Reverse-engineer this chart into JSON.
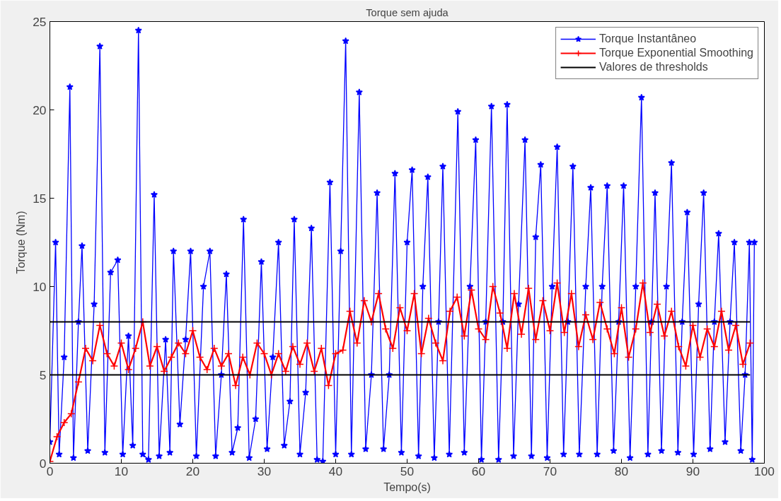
{
  "chart_data": {
    "type": "line",
    "title": "Torque sem ajuda",
    "xlabel": "Tempo(s)",
    "ylabel": "Torque (Nm)",
    "xlim": [
      0,
      100
    ],
    "ylim": [
      0,
      25
    ],
    "xticks": [
      0,
      10,
      20,
      30,
      40,
      50,
      60,
      70,
      80,
      90,
      100
    ],
    "yticks": [
      0,
      5,
      10,
      15,
      20,
      25
    ],
    "grid": false,
    "legend": "top right",
    "series": [
      {
        "name": "Torque Instantâneo",
        "color": "#0000ff",
        "marker": "star",
        "x": [
          0,
          0.8,
          1.3,
          2.0,
          2.8,
          3.3,
          4.0,
          4.5,
          5.3,
          6.2,
          7.0,
          7.7,
          8.5,
          9.5,
          10.2,
          11.0,
          11.6,
          12.4,
          13.0,
          13.8,
          14.6,
          15.3,
          16.2,
          16.8,
          17.3,
          18.2,
          19.0,
          19.7,
          20.5,
          21.5,
          22.4,
          23.2,
          24.0,
          24.7,
          25.5,
          26.3,
          27.1,
          27.9,
          28.8,
          29.6,
          30.4,
          31.2,
          32.0,
          32.8,
          33.6,
          34.2,
          35.0,
          35.8,
          36.6,
          37.4,
          38.2,
          39.2,
          40.0,
          40.7,
          41.4,
          42.2,
          43.3,
          44.2,
          45.0,
          45.8,
          46.7,
          47.5,
          48.3,
          49.2,
          50.0,
          50.7,
          51.6,
          52.2,
          52.9,
          53.8,
          54.4,
          55.0,
          55.9,
          57.1,
          58.0,
          58.8,
          59.6,
          60.4,
          61.0,
          61.8,
          62.8,
          63.4,
          64.0,
          64.9,
          65.6,
          66.5,
          67.4,
          68.0,
          68.7,
          69.6,
          70.3,
          71.0,
          71.9,
          72.5,
          73.2,
          74.1,
          75.0,
          75.7,
          76.6,
          77.3,
          78.0,
          78.9,
          79.6,
          80.3,
          81.2,
          82.0,
          82.8,
          83.7,
          84.2,
          84.7,
          85.6,
          86.3,
          87.0,
          87.9,
          88.5,
          89.2,
          90.1,
          90.8,
          91.5,
          92.4,
          93.0,
          93.6,
          94.5,
          95.2,
          95.8,
          96.7,
          97.3,
          97.9,
          98.3,
          98.6
        ],
        "values": [
          1.2,
          12.5,
          0.5,
          6,
          21.3,
          0.3,
          8,
          12.3,
          0.7,
          9,
          23.6,
          0.6,
          10.8,
          11.5,
          0.5,
          7.2,
          1.0,
          24.5,
          0.5,
          0.2,
          15.2,
          0.4,
          7,
          0.6,
          12,
          2.2,
          7,
          12,
          0.4,
          10,
          12,
          0.4,
          5,
          10.7,
          0.6,
          2,
          13.8,
          0.3,
          2.5,
          11.4,
          0.8,
          6,
          12.5,
          1.0,
          3.5,
          13.8,
          0.5,
          4,
          13.3,
          0.2,
          0.1,
          15.9,
          0.5,
          12,
          23.9,
          0.5,
          21,
          0.8,
          5,
          15.3,
          0.8,
          5,
          16.4,
          0.6,
          12.5,
          16.6,
          0.4,
          10,
          16.2,
          0.3,
          8,
          16.8,
          0.5,
          19.9,
          0.6,
          10,
          18.3,
          0.2,
          8,
          20.2,
          0.2,
          8,
          20.3,
          0.4,
          9,
          18.3,
          0.4,
          12.8,
          16.9,
          0.3,
          10,
          17.9,
          0.5,
          8,
          16.8,
          0.5,
          10,
          15.6,
          0.5,
          10,
          15.7,
          0.7,
          8,
          15.7,
          0.3,
          10,
          20.7,
          0.5,
          8,
          15.3,
          0.7,
          10,
          17,
          0.6,
          8,
          14.2,
          0.5,
          9,
          15.3,
          0.8,
          8,
          13,
          1.2,
          8,
          12.5,
          0.7,
          5,
          12.5,
          0.2,
          12.5
        ]
      },
      {
        "name": "Torque Exponential Smoothing",
        "color": "#ff0000",
        "marker": "cross",
        "x": [
          0,
          1,
          2,
          3,
          4,
          5,
          6,
          7,
          8,
          9,
          10,
          11,
          12,
          13,
          14,
          15,
          16,
          17,
          18,
          19,
          20,
          21,
          22,
          23,
          24,
          25,
          26,
          27,
          28,
          29,
          30,
          31,
          32,
          33,
          34,
          35,
          36,
          37,
          38,
          39,
          40,
          41,
          42,
          43,
          44,
          45,
          46,
          47,
          48,
          49,
          50,
          51,
          52,
          53,
          54,
          55,
          56,
          57,
          58,
          59,
          60,
          61,
          62,
          63,
          64,
          65,
          66,
          67,
          68,
          69,
          70,
          71,
          72,
          73,
          74,
          75,
          76,
          77,
          78,
          79,
          80,
          81,
          82,
          83,
          84,
          85,
          86,
          87,
          88,
          89,
          90,
          91,
          92,
          93,
          94,
          95,
          96,
          97,
          98
        ],
        "values": [
          0.1,
          1.5,
          2.3,
          2.8,
          4.6,
          6.5,
          5.8,
          7.8,
          6.2,
          5.5,
          6.8,
          5.3,
          6.5,
          8.0,
          5.5,
          6.6,
          5.2,
          6.0,
          6.8,
          6.2,
          7.5,
          6.0,
          5.3,
          6.5,
          5.5,
          6.2,
          4.4,
          6.0,
          5.0,
          6.8,
          6.2,
          5.0,
          6.2,
          5.2,
          6.6,
          5.6,
          6.8,
          5.2,
          6.5,
          4.4,
          6.2,
          6.4,
          8.6,
          6.8,
          9.2,
          8.0,
          9.6,
          7.6,
          6.5,
          8.8,
          7.5,
          9.6,
          6.2,
          8.2,
          6.8,
          5.8,
          8.6,
          9.4,
          7.2,
          9.8,
          7.6,
          7.0,
          10.0,
          8.5,
          6.5,
          9.6,
          7.3,
          9.9,
          7.0,
          9.2,
          7.5,
          10.2,
          7.4,
          9.6,
          6.6,
          8.4,
          7.0,
          9.1,
          7.6,
          6.2,
          8.8,
          6.0,
          7.6,
          10.2,
          7.4,
          9.0,
          7.2,
          8.6,
          6.6,
          5.5,
          7.8,
          6.0,
          7.6,
          6.6,
          8.6,
          6.4,
          7.8,
          5.6,
          6.8
        ]
      },
      {
        "name": "Valores de thresholds",
        "color": "#000000",
        "marker": "none",
        "x": [
          0,
          98
        ],
        "values": [
          8,
          8
        ]
      },
      {
        "color": "#000000",
        "marker": "none",
        "x": [
          0,
          98
        ],
        "values": [
          5,
          5
        ]
      }
    ]
  }
}
